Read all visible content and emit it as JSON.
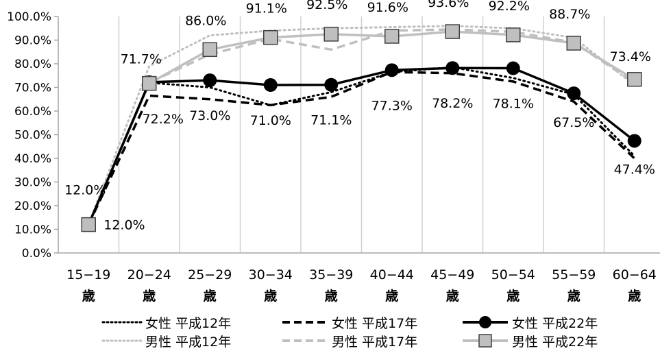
{
  "chart_data": {
    "type": "line",
    "categories": [
      "15−19\n歳",
      "20−24\n歳",
      "25−29\n歳",
      "30−34\n歳",
      "35−39\n歳",
      "40−44\n歳",
      "45−49\n歳",
      "50−54\n歳",
      "55−59\n歳",
      "60−64\n歳"
    ],
    "y_ticks": [
      "0.0%",
      "10.0%",
      "20.0%",
      "30.0%",
      "40.0%",
      "50.0%",
      "60.0%",
      "70.0%",
      "80.0%",
      "90.0%",
      "100.0%"
    ],
    "ylim": [
      0,
      100
    ],
    "grid": "vertical",
    "legend_position": "bottom",
    "series": [
      {
        "name": "女性 平成12年",
        "values": [
          12.0,
          72.0,
          70.0,
          62.5,
          68.0,
          76.5,
          78.5,
          74.0,
          67.0,
          41.0
        ],
        "color": "#000000",
        "style": "dotted"
      },
      {
        "name": "女性 平成17年",
        "values": [
          12.0,
          66.5,
          65.0,
          62.5,
          66.0,
          76.5,
          76.0,
          72.5,
          64.0,
          40.0
        ],
        "color": "#000000",
        "style": "dashed"
      },
      {
        "name": "女性 平成22年",
        "values": [
          12.0,
          72.2,
          73.0,
          71.0,
          71.1,
          77.3,
          78.2,
          78.1,
          67.5,
          47.4
        ],
        "color": "#000000",
        "style": "solid-circle"
      },
      {
        "name": "男性 平成12年",
        "values": [
          12.0,
          79.0,
          92.0,
          94.0,
          95.0,
          95.5,
          96.0,
          95.0,
          91.0,
          71.0
        ],
        "color": "#bfbfbf",
        "style": "dotted"
      },
      {
        "name": "男性 平成17年",
        "values": [
          12.0,
          72.0,
          84.0,
          90.5,
          86.0,
          94.0,
          94.5,
          93.5,
          89.0,
          72.0
        ],
        "color": "#bfbfbf",
        "style": "dashed"
      },
      {
        "name": "男性 平成22年",
        "values": [
          12.0,
          71.7,
          86.0,
          91.1,
          92.5,
          91.6,
          93.6,
          92.2,
          88.7,
          73.4
        ],
        "color": "#bfbfbf",
        "style": "solid-square"
      }
    ],
    "data_labels": {
      "女性 平成22年": [
        "12.0%",
        "72.2%",
        "73.0%",
        "71.0%",
        "71.1%",
        "77.3%",
        "78.2%",
        "78.1%",
        "67.5%",
        "47.4%"
      ],
      "男性 平成22年": [
        "12.0%",
        "71.7%",
        "86.0%",
        "91.1%",
        "92.5%",
        "91.6%",
        "93.6%",
        "92.2%",
        "88.7%",
        "73.4%"
      ]
    }
  }
}
